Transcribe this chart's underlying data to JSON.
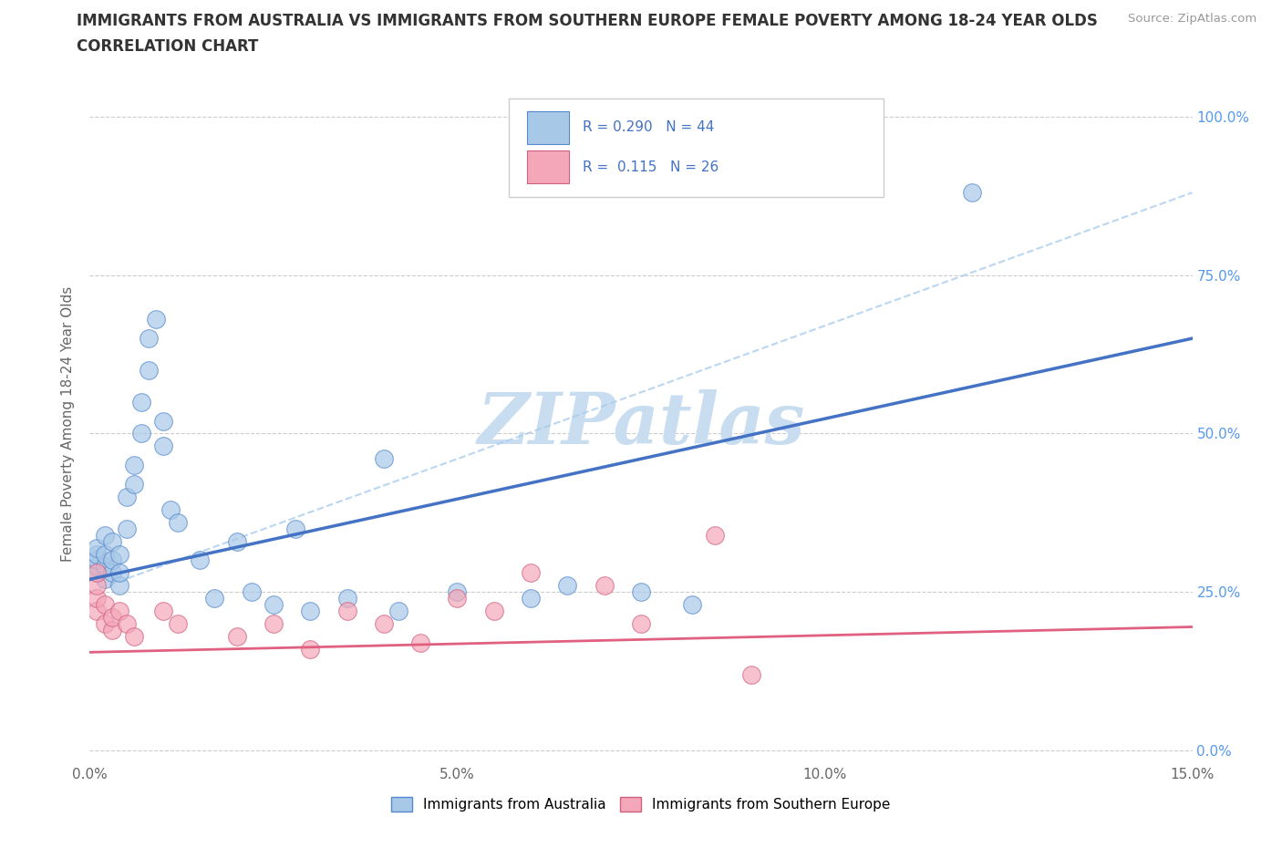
{
  "title_line1": "IMMIGRANTS FROM AUSTRALIA VS IMMIGRANTS FROM SOUTHERN EUROPE FEMALE POVERTY AMONG 18-24 YEAR OLDS",
  "title_line2": "CORRELATION CHART",
  "source_text": "Source: ZipAtlas.com",
  "ylabel": "Female Poverty Among 18-24 Year Olds",
  "xlim": [
    0.0,
    0.15
  ],
  "ylim": [
    0.0,
    1.05
  ],
  "yticks": [
    0.0,
    0.25,
    0.5,
    0.75,
    1.0
  ],
  "ytick_labels_right": [
    "0.0%",
    "25.0%",
    "50.0%",
    "75.0%",
    "100.0%"
  ],
  "xticks": [
    0.0,
    0.05,
    0.1,
    0.15
  ],
  "xtick_labels": [
    "0.0%",
    "5.0%",
    "10.0%",
    "15.0%"
  ],
  "color_australia": "#a8c8e8",
  "color_australia_edge": "#5588cc",
  "color_australia_line": "#4472c4",
  "color_s_europe": "#f4a7b9",
  "color_s_europe_edge": "#d06080",
  "color_s_europe_line": "#e06080",
  "color_dashed": "#aaccee",
  "R_australia": 0.29,
  "N_australia": 44,
  "R_s_europe": 0.115,
  "N_s_europe": 26,
  "watermark": "ZIPatlas",
  "watermark_color": "#c8ddf0",
  "legend_label_australia": "Immigrants from Australia",
  "legend_label_s_europe": "Immigrants from Southern Europe",
  "australia_x": [
    0.001,
    0.001,
    0.001,
    0.001,
    0.001,
    0.002,
    0.002,
    0.002,
    0.002,
    0.003,
    0.003,
    0.003,
    0.004,
    0.004,
    0.004,
    0.005,
    0.005,
    0.006,
    0.006,
    0.007,
    0.007,
    0.008,
    0.008,
    0.009,
    0.01,
    0.01,
    0.011,
    0.012,
    0.015,
    0.017,
    0.02,
    0.022,
    0.025,
    0.028,
    0.03,
    0.035,
    0.04,
    0.042,
    0.05,
    0.06,
    0.065,
    0.075,
    0.082,
    0.12
  ],
  "australia_y": [
    0.28,
    0.29,
    0.3,
    0.31,
    0.32,
    0.27,
    0.29,
    0.31,
    0.34,
    0.28,
    0.3,
    0.33,
    0.26,
    0.28,
    0.31,
    0.35,
    0.4,
    0.42,
    0.45,
    0.5,
    0.55,
    0.6,
    0.65,
    0.68,
    0.48,
    0.52,
    0.38,
    0.36,
    0.3,
    0.24,
    0.33,
    0.25,
    0.23,
    0.35,
    0.22,
    0.24,
    0.46,
    0.22,
    0.25,
    0.24,
    0.26,
    0.25,
    0.23,
    0.88
  ],
  "s_europe_x": [
    0.001,
    0.001,
    0.001,
    0.001,
    0.002,
    0.002,
    0.003,
    0.003,
    0.004,
    0.005,
    0.006,
    0.01,
    0.012,
    0.02,
    0.025,
    0.03,
    0.035,
    0.04,
    0.045,
    0.05,
    0.055,
    0.06,
    0.07,
    0.075,
    0.085,
    0.09
  ],
  "s_europe_y": [
    0.22,
    0.24,
    0.26,
    0.28,
    0.2,
    0.23,
    0.19,
    0.21,
    0.22,
    0.2,
    0.18,
    0.22,
    0.2,
    0.18,
    0.2,
    0.16,
    0.22,
    0.2,
    0.17,
    0.24,
    0.22,
    0.28,
    0.26,
    0.2,
    0.34,
    0.12
  ]
}
